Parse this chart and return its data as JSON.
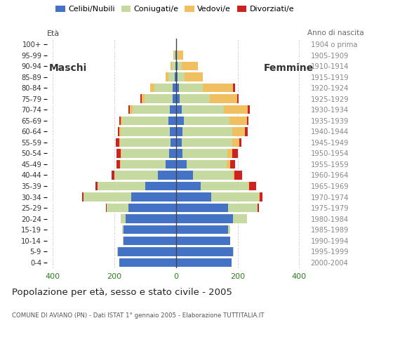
{
  "age_groups": [
    "0-4",
    "5-9",
    "10-14",
    "15-19",
    "20-24",
    "25-29",
    "30-34",
    "35-39",
    "40-44",
    "45-49",
    "50-54",
    "55-59",
    "60-64",
    "65-69",
    "70-74",
    "75-79",
    "80-84",
    "85-89",
    "90-94",
    "95-99",
    "100+"
  ],
  "birth_years": [
    "2000-2004",
    "1995-1999",
    "1990-1994",
    "1985-1989",
    "1980-1984",
    "1975-1979",
    "1970-1974",
    "1965-1969",
    "1960-1964",
    "1955-1959",
    "1950-1954",
    "1945-1949",
    "1940-1944",
    "1935-1939",
    "1930-1934",
    "1925-1929",
    "1920-1924",
    "1915-1919",
    "1910-1914",
    "1905-1909",
    "1904 o prima"
  ],
  "male_celibe": [
    185,
    190,
    170,
    170,
    165,
    155,
    145,
    100,
    60,
    35,
    22,
    18,
    20,
    25,
    20,
    12,
    10,
    5,
    3,
    3,
    0
  ],
  "male_coniugato": [
    0,
    2,
    2,
    5,
    15,
    70,
    155,
    155,
    140,
    145,
    155,
    165,
    160,
    150,
    120,
    90,
    60,
    20,
    10,
    3,
    0
  ],
  "male_vedovo": [
    0,
    0,
    0,
    0,
    0,
    0,
    1,
    1,
    1,
    1,
    2,
    2,
    5,
    5,
    10,
    10,
    15,
    10,
    5,
    2,
    0
  ],
  "male_divorziato": [
    0,
    0,
    0,
    0,
    0,
    2,
    5,
    5,
    8,
    12,
    15,
    10,
    5,
    5,
    5,
    3,
    0,
    0,
    0,
    0,
    0
  ],
  "female_nubile": [
    180,
    185,
    175,
    170,
    185,
    170,
    115,
    80,
    55,
    35,
    22,
    18,
    20,
    25,
    18,
    12,
    10,
    6,
    4,
    2,
    0
  ],
  "female_coniugata": [
    0,
    2,
    2,
    5,
    45,
    95,
    155,
    155,
    130,
    130,
    145,
    165,
    162,
    148,
    138,
    98,
    78,
    22,
    14,
    4,
    0
  ],
  "female_vedova": [
    0,
    0,
    0,
    0,
    0,
    1,
    2,
    3,
    5,
    10,
    15,
    22,
    42,
    58,
    78,
    88,
    98,
    58,
    52,
    18,
    2
  ],
  "female_divorziata": [
    0,
    0,
    0,
    0,
    1,
    3,
    8,
    22,
    25,
    18,
    18,
    8,
    8,
    5,
    5,
    5,
    5,
    0,
    0,
    0,
    0
  ],
  "colors": {
    "celibe": "#4472c4",
    "coniugato": "#c5d9a0",
    "vedovo": "#f0c060",
    "divorziato": "#cc2222"
  },
  "xlim": 420,
  "title": "Popolazione per età, sesso e stato civile - 2005",
  "subtitle": "COMUNE DI AVIANO (PN) - Dati ISTAT 1° gennaio 2005 - Elaborazione TUTTITALIA.IT",
  "legend_labels": [
    "Celibi/Nubili",
    "Coniugati/e",
    "Vedovi/e",
    "Divorziati/e"
  ],
  "ylabel_left": "Età",
  "ylabel_right": "Anno di nascita",
  "label_maschi": "Maschi",
  "label_femmine": "Femmine",
  "bar_height": 0.8
}
